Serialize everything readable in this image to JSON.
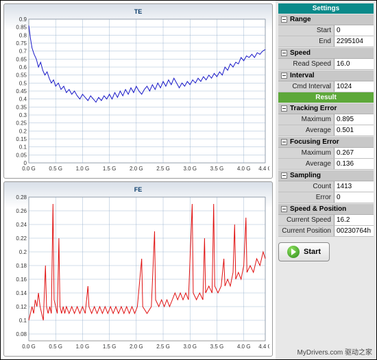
{
  "charts": {
    "te": {
      "title": "TE",
      "color": "#1818c8",
      "grid_color": "#8aa7c8",
      "tick_color": "#333333",
      "background": "#ffffff",
      "xlim": [
        0,
        4.4
      ],
      "ylim": [
        0,
        0.9
      ],
      "xticks": [
        0,
        0.5,
        1.0,
        1.5,
        2.0,
        2.5,
        3.0,
        3.5,
        4.0,
        4.4
      ],
      "xtick_labels": [
        "0.0 G",
        "0.5 G",
        "1.0 G",
        "1.5 G",
        "2.0 G",
        "2.5 G",
        "3.0 G",
        "3.5 G",
        "4.0 G",
        "4.4 G"
      ],
      "yticks": [
        0,
        0.05,
        0.1,
        0.15,
        0.2,
        0.25,
        0.3,
        0.35,
        0.4,
        0.45,
        0.5,
        0.55,
        0.6,
        0.65,
        0.7,
        0.75,
        0.8,
        0.85,
        0.9
      ],
      "data": [
        [
          0.0,
          0.86
        ],
        [
          0.03,
          0.78
        ],
        [
          0.06,
          0.72
        ],
        [
          0.1,
          0.68
        ],
        [
          0.14,
          0.65
        ],
        [
          0.18,
          0.6
        ],
        [
          0.22,
          0.63
        ],
        [
          0.26,
          0.58
        ],
        [
          0.3,
          0.55
        ],
        [
          0.34,
          0.57
        ],
        [
          0.38,
          0.53
        ],
        [
          0.42,
          0.5
        ],
        [
          0.46,
          0.52
        ],
        [
          0.5,
          0.48
        ],
        [
          0.55,
          0.5
        ],
        [
          0.6,
          0.46
        ],
        [
          0.65,
          0.48
        ],
        [
          0.7,
          0.44
        ],
        [
          0.75,
          0.46
        ],
        [
          0.8,
          0.43
        ],
        [
          0.85,
          0.45
        ],
        [
          0.9,
          0.42
        ],
        [
          0.95,
          0.4
        ],
        [
          1.0,
          0.43
        ],
        [
          1.05,
          0.41
        ],
        [
          1.1,
          0.39
        ],
        [
          1.15,
          0.42
        ],
        [
          1.2,
          0.4
        ],
        [
          1.25,
          0.38
        ],
        [
          1.3,
          0.41
        ],
        [
          1.35,
          0.39
        ],
        [
          1.4,
          0.42
        ],
        [
          1.45,
          0.4
        ],
        [
          1.5,
          0.43
        ],
        [
          1.55,
          0.4
        ],
        [
          1.6,
          0.44
        ],
        [
          1.65,
          0.41
        ],
        [
          1.7,
          0.45
        ],
        [
          1.75,
          0.42
        ],
        [
          1.8,
          0.46
        ],
        [
          1.85,
          0.43
        ],
        [
          1.9,
          0.47
        ],
        [
          1.95,
          0.44
        ],
        [
          2.0,
          0.48
        ],
        [
          2.05,
          0.45
        ],
        [
          2.1,
          0.43
        ],
        [
          2.15,
          0.46
        ],
        [
          2.2,
          0.48
        ],
        [
          2.25,
          0.45
        ],
        [
          2.3,
          0.49
        ],
        [
          2.35,
          0.46
        ],
        [
          2.4,
          0.5
        ],
        [
          2.45,
          0.47
        ],
        [
          2.5,
          0.51
        ],
        [
          2.55,
          0.48
        ],
        [
          2.6,
          0.52
        ],
        [
          2.65,
          0.49
        ],
        [
          2.7,
          0.53
        ],
        [
          2.75,
          0.5
        ],
        [
          2.8,
          0.47
        ],
        [
          2.85,
          0.5
        ],
        [
          2.9,
          0.48
        ],
        [
          2.95,
          0.51
        ],
        [
          3.0,
          0.49
        ],
        [
          3.05,
          0.52
        ],
        [
          3.1,
          0.5
        ],
        [
          3.15,
          0.53
        ],
        [
          3.2,
          0.51
        ],
        [
          3.25,
          0.54
        ],
        [
          3.3,
          0.52
        ],
        [
          3.35,
          0.55
        ],
        [
          3.4,
          0.53
        ],
        [
          3.45,
          0.56
        ],
        [
          3.5,
          0.54
        ],
        [
          3.55,
          0.57
        ],
        [
          3.6,
          0.55
        ],
        [
          3.65,
          0.6
        ],
        [
          3.7,
          0.58
        ],
        [
          3.75,
          0.62
        ],
        [
          3.8,
          0.6
        ],
        [
          3.85,
          0.63
        ],
        [
          3.9,
          0.62
        ],
        [
          3.95,
          0.66
        ],
        [
          4.0,
          0.64
        ],
        [
          4.05,
          0.67
        ],
        [
          4.1,
          0.66
        ],
        [
          4.15,
          0.68
        ],
        [
          4.2,
          0.66
        ],
        [
          4.25,
          0.69
        ],
        [
          4.3,
          0.68
        ],
        [
          4.35,
          0.7
        ],
        [
          4.4,
          0.71
        ]
      ]
    },
    "fe": {
      "title": "FE",
      "color": "#e01010",
      "grid_color": "#8aa7c8",
      "tick_color": "#333333",
      "background": "#ffffff",
      "xlim": [
        0,
        4.4
      ],
      "ylim": [
        0.07,
        0.28
      ],
      "xticks": [
        0,
        0.5,
        1.0,
        1.5,
        2.0,
        2.5,
        3.0,
        3.5,
        4.0,
        4.4
      ],
      "xtick_labels": [
        "0.0 G",
        "0.5 G",
        "1.0 G",
        "1.5 G",
        "2.0 G",
        "2.5 G",
        "3.0 G",
        "3.5 G",
        "4.0 G",
        "4.4 G"
      ],
      "yticks": [
        0.08,
        0.1,
        0.12,
        0.14,
        0.16,
        0.18,
        0.2,
        0.22,
        0.24,
        0.26,
        0.28
      ],
      "data": [
        [
          0.0,
          0.1
        ],
        [
          0.03,
          0.11
        ],
        [
          0.06,
          0.12
        ],
        [
          0.09,
          0.11
        ],
        [
          0.12,
          0.13
        ],
        [
          0.15,
          0.12
        ],
        [
          0.18,
          0.14
        ],
        [
          0.21,
          0.12
        ],
        [
          0.24,
          0.11
        ],
        [
          0.27,
          0.1
        ],
        [
          0.31,
          0.18
        ],
        [
          0.33,
          0.12
        ],
        [
          0.36,
          0.11
        ],
        [
          0.39,
          0.12
        ],
        [
          0.42,
          0.11
        ],
        [
          0.45,
          0.27
        ],
        [
          0.47,
          0.13
        ],
        [
          0.5,
          0.12
        ],
        [
          0.53,
          0.11
        ],
        [
          0.56,
          0.22
        ],
        [
          0.58,
          0.12
        ],
        [
          0.61,
          0.11
        ],
        [
          0.64,
          0.12
        ],
        [
          0.67,
          0.11
        ],
        [
          0.7,
          0.12
        ],
        [
          0.75,
          0.11
        ],
        [
          0.8,
          0.12
        ],
        [
          0.85,
          0.11
        ],
        [
          0.9,
          0.12
        ],
        [
          0.95,
          0.11
        ],
        [
          1.0,
          0.12
        ],
        [
          1.05,
          0.11
        ],
        [
          1.1,
          0.15
        ],
        [
          1.12,
          0.12
        ],
        [
          1.17,
          0.11
        ],
        [
          1.22,
          0.12
        ],
        [
          1.27,
          0.11
        ],
        [
          1.32,
          0.12
        ],
        [
          1.37,
          0.11
        ],
        [
          1.42,
          0.12
        ],
        [
          1.47,
          0.11
        ],
        [
          1.52,
          0.12
        ],
        [
          1.57,
          0.11
        ],
        [
          1.62,
          0.12
        ],
        [
          1.67,
          0.11
        ],
        [
          1.72,
          0.12
        ],
        [
          1.77,
          0.11
        ],
        [
          1.82,
          0.12
        ],
        [
          1.87,
          0.11
        ],
        [
          1.92,
          0.12
        ],
        [
          1.97,
          0.11
        ],
        [
          2.02,
          0.12
        ],
        [
          2.1,
          0.19
        ],
        [
          2.12,
          0.12
        ],
        [
          2.2,
          0.11
        ],
        [
          2.28,
          0.12
        ],
        [
          2.34,
          0.23
        ],
        [
          2.36,
          0.13
        ],
        [
          2.42,
          0.12
        ],
        [
          2.47,
          0.13
        ],
        [
          2.52,
          0.12
        ],
        [
          2.57,
          0.13
        ],
        [
          2.62,
          0.12
        ],
        [
          2.67,
          0.13
        ],
        [
          2.72,
          0.14
        ],
        [
          2.77,
          0.13
        ],
        [
          2.82,
          0.14
        ],
        [
          2.87,
          0.13
        ],
        [
          2.92,
          0.14
        ],
        [
          2.97,
          0.13
        ],
        [
          3.04,
          0.27
        ],
        [
          3.06,
          0.14
        ],
        [
          3.12,
          0.13
        ],
        [
          3.18,
          0.14
        ],
        [
          3.24,
          0.13
        ],
        [
          3.27,
          0.22
        ],
        [
          3.29,
          0.14
        ],
        [
          3.35,
          0.15
        ],
        [
          3.41,
          0.14
        ],
        [
          3.44,
          0.27
        ],
        [
          3.46,
          0.15
        ],
        [
          3.52,
          0.14
        ],
        [
          3.58,
          0.15
        ],
        [
          3.63,
          0.19
        ],
        [
          3.65,
          0.15
        ],
        [
          3.7,
          0.16
        ],
        [
          3.75,
          0.15
        ],
        [
          3.8,
          0.17
        ],
        [
          3.83,
          0.24
        ],
        [
          3.85,
          0.16
        ],
        [
          3.9,
          0.17
        ],
        [
          3.95,
          0.16
        ],
        [
          4.0,
          0.18
        ],
        [
          4.04,
          0.25
        ],
        [
          4.06,
          0.17
        ],
        [
          4.12,
          0.18
        ],
        [
          4.18,
          0.17
        ],
        [
          4.24,
          0.19
        ],
        [
          4.3,
          0.18
        ],
        [
          4.36,
          0.2
        ],
        [
          4.4,
          0.19
        ]
      ]
    }
  },
  "panel": {
    "settings_header": "Settings",
    "result_header": "Result",
    "groups": {
      "range": {
        "title": "Range",
        "rows": [
          {
            "k": "Start",
            "v": "0"
          },
          {
            "k": "End",
            "v": "2295104"
          }
        ]
      },
      "speed": {
        "title": "Speed",
        "rows": [
          {
            "k": "Read Speed",
            "v": "16.0"
          }
        ]
      },
      "interval": {
        "title": "Interval",
        "rows": [
          {
            "k": "Cmd Interval",
            "v": "1024"
          }
        ]
      },
      "tracking": {
        "title": "Tracking Error",
        "rows": [
          {
            "k": "Maximum",
            "v": "0.895"
          },
          {
            "k": "Average",
            "v": "0.501"
          }
        ]
      },
      "focusing": {
        "title": "Focusing Error",
        "rows": [
          {
            "k": "Maximum",
            "v": "0.267"
          },
          {
            "k": "Average",
            "v": "0.136"
          }
        ]
      },
      "sampling": {
        "title": "Sampling",
        "rows": [
          {
            "k": "Count",
            "v": "1413"
          },
          {
            "k": "Error",
            "v": "0"
          }
        ]
      },
      "speedpos": {
        "title": "Speed & Position",
        "rows": [
          {
            "k": "Current Speed",
            "v": "16.2"
          },
          {
            "k": "Current Position",
            "v": "00230764h"
          }
        ]
      }
    },
    "start_label": "Start"
  },
  "watermark": "MyDrivers.com 驱动之家"
}
